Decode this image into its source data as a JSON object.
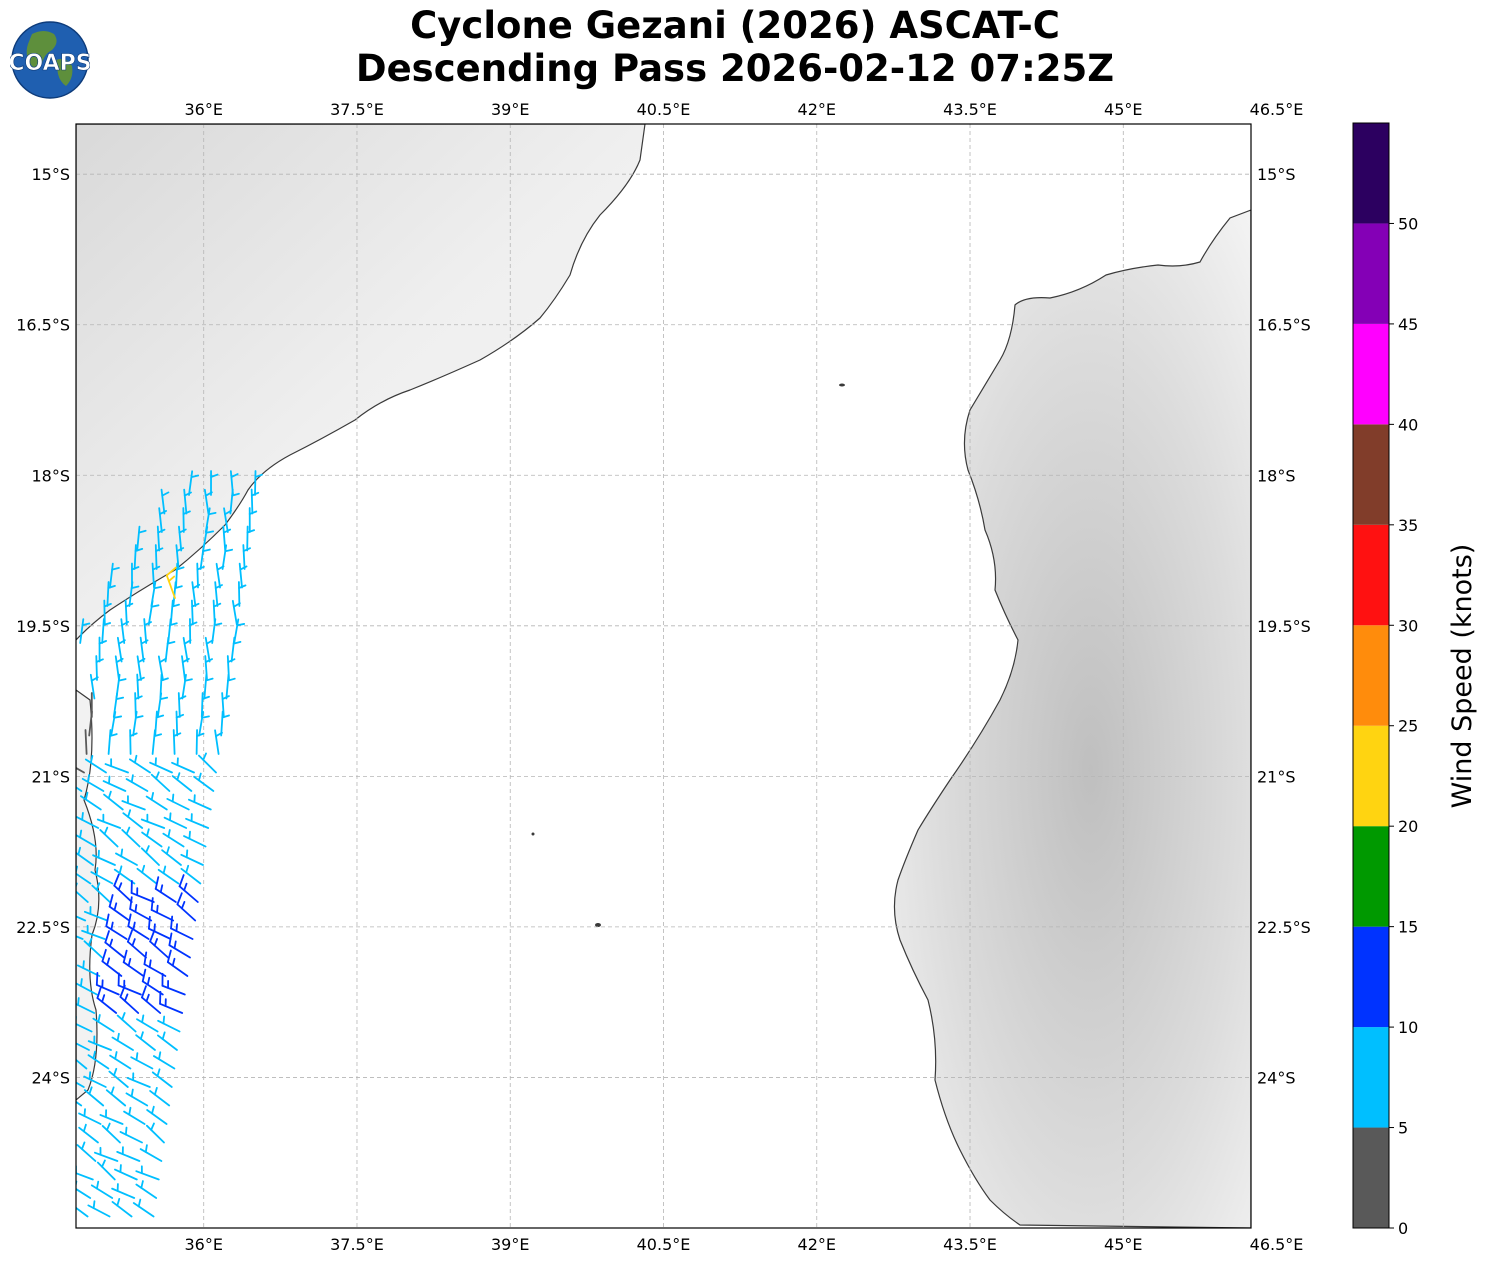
{
  "title": {
    "line1": "Cyclone Gezani (2026) ASCAT-C",
    "line2": "Descending Pass 2026-02-12 07:25Z"
  },
  "logo": {
    "text": "COAPS",
    "icon": "globe-icon"
  },
  "map": {
    "lon_range": [
      34.75,
      46.25
    ],
    "lat_range": [
      -25.5,
      -14.5
    ],
    "lon_ticks": [
      "36°E",
      "37.5°E",
      "39°E",
      "40.5°E",
      "42°E",
      "43.5°E",
      "45°E",
      "46.5°E"
    ],
    "lat_ticks": [
      "15°S",
      "16.5°S",
      "18°S",
      "19.5°S",
      "21°S",
      "22.5°S",
      "24°S"
    ],
    "gridlines": true,
    "background": "grayscale topography"
  },
  "colorbar": {
    "label": "Wind Speed (knots)",
    "ticks": [
      "0",
      "5",
      "10",
      "15",
      "20",
      "25",
      "30",
      "35",
      "40",
      "45",
      "50"
    ],
    "bins": [
      {
        "from": 0,
        "to": 5,
        "color": "#595959"
      },
      {
        "from": 5,
        "to": 10,
        "color": "#00bfff"
      },
      {
        "from": 10,
        "to": 15,
        "color": "#0033ff"
      },
      {
        "from": 15,
        "to": 20,
        "color": "#009900"
      },
      {
        "from": 20,
        "to": 25,
        "color": "#ffd411"
      },
      {
        "from": 25,
        "to": 30,
        "color": "#ff8c0c"
      },
      {
        "from": 30,
        "to": 35,
        "color": "#ff1111"
      },
      {
        "from": 35,
        "to": 40,
        "color": "#813d2a"
      },
      {
        "from": 40,
        "to": 45,
        "color": "#ff00ff"
      },
      {
        "from": 45,
        "to": 50,
        "color": "#8400b6"
      },
      {
        "from": 50,
        "to": 55,
        "color": "#2c0060"
      }
    ]
  }
}
